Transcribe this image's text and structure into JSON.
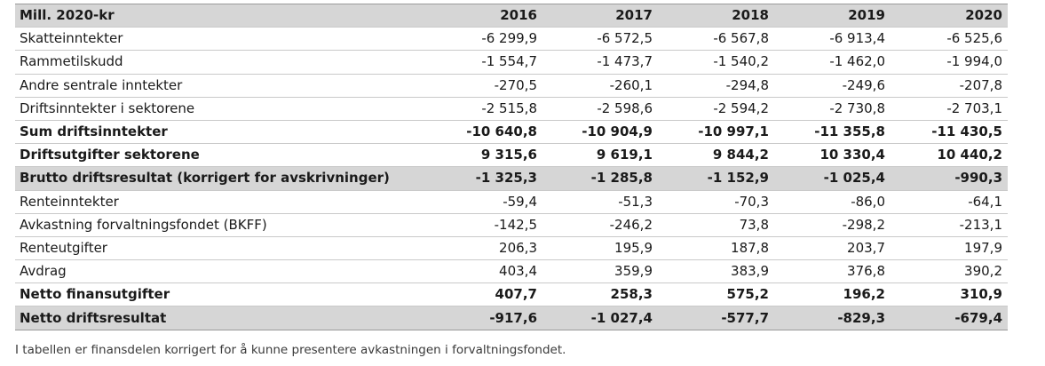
{
  "table": {
    "header": {
      "label": "Mill. 2020-kr",
      "years": [
        "2016",
        "2017",
        "2018",
        "2019",
        "2020"
      ]
    },
    "rows": [
      {
        "label": "Skatteinntekter",
        "values": [
          "-6 299,9",
          "-6 572,5",
          "-6 567,8",
          "-6 913,4",
          "-6 525,6"
        ],
        "bold": false,
        "shaded": false
      },
      {
        "label": "Rammetilskudd",
        "values": [
          "-1 554,7",
          "-1 473,7",
          "-1 540,2",
          "-1 462,0",
          "-1 994,0"
        ],
        "bold": false,
        "shaded": false
      },
      {
        "label": "Andre sentrale inntekter",
        "values": [
          "-270,5",
          "-260,1",
          "-294,8",
          "-249,6",
          "-207,8"
        ],
        "bold": false,
        "shaded": false
      },
      {
        "label": "Driftsinntekter i sektorene",
        "values": [
          "-2 515,8",
          "-2 598,6",
          "-2 594,2",
          "-2 730,8",
          "-2 703,1"
        ],
        "bold": false,
        "shaded": false
      },
      {
        "label": "Sum driftsinntekter",
        "values": [
          "-10 640,8",
          "-10 904,9",
          "-10 997,1",
          "-11 355,8",
          "-11 430,5"
        ],
        "bold": true,
        "shaded": false
      },
      {
        "label": "Driftsutgifter sektorene",
        "values": [
          "9 315,6",
          "9 619,1",
          "9 844,2",
          "10 330,4",
          "10 440,2"
        ],
        "bold": true,
        "shaded": false
      },
      {
        "label": "Brutto driftsresultat (korrigert for avskrivninger)",
        "values": [
          "-1 325,3",
          "-1 285,8",
          "-1 152,9",
          "-1 025,4",
          "-990,3"
        ],
        "bold": true,
        "shaded": true
      },
      {
        "label": "Renteinntekter",
        "values": [
          "-59,4",
          "-51,3",
          "-70,3",
          "-86,0",
          "-64,1"
        ],
        "bold": false,
        "shaded": false
      },
      {
        "label": "Avkastning forvaltningsfondet (BKFF)",
        "values": [
          "-142,5",
          "-246,2",
          "73,8",
          "-298,2",
          "-213,1"
        ],
        "bold": false,
        "shaded": false
      },
      {
        "label": "Renteutgifter",
        "values": [
          "206,3",
          "195,9",
          "187,8",
          "203,7",
          "197,9"
        ],
        "bold": false,
        "shaded": false
      },
      {
        "label": "Avdrag",
        "values": [
          "403,4",
          "359,9",
          "383,9",
          "376,8",
          "390,2"
        ],
        "bold": false,
        "shaded": false
      },
      {
        "label": "Netto finansutgifter",
        "values": [
          "407,7",
          "258,3",
          "575,2",
          "196,2",
          "310,9"
        ],
        "bold": true,
        "shaded": false
      },
      {
        "label": "Netto driftsresultat",
        "values": [
          "-917,6",
          "-1 027,4",
          "-577,7",
          "-829,3",
          "-679,4"
        ],
        "bold": true,
        "shaded": true
      }
    ]
  },
  "footnote": "I tabellen er finansdelen korrigert for å kunne presentere avkastningen i forvaltningsfondet."
}
